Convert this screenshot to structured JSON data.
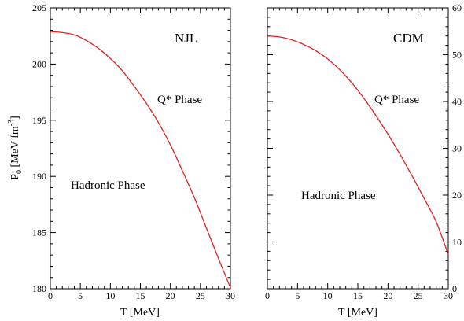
{
  "chart_data": [
    {
      "type": "line",
      "panel": "left",
      "model_label": "NJL",
      "annotations": [
        "Q* Phase",
        "Hadronic Phase"
      ],
      "xlabel": "T [MeV]",
      "ylabel_main": "P",
      "ylabel_sub": "0",
      "ylabel_rest": " [MeV fm",
      "ylabel_sup": "-3",
      "ylabel_close": "]",
      "xlim": [
        0,
        30
      ],
      "ylim": [
        180,
        205
      ],
      "x_ticks": [
        0,
        5,
        10,
        15,
        20,
        25,
        30
      ],
      "y_ticks": [
        180,
        185,
        190,
        195,
        200,
        205
      ],
      "x_minor_step": 1,
      "y_minor_step": 1,
      "y_axis_side": "left",
      "line_color": "#e02020",
      "series": [
        {
          "x": [
            0,
            2,
            4,
            6,
            8,
            10,
            12,
            14,
            16,
            18,
            20,
            22,
            24,
            26,
            28,
            30
          ],
          "y": [
            202.9,
            202.8,
            202.6,
            202.1,
            201.4,
            200.5,
            199.4,
            198.0,
            196.5,
            194.8,
            192.8,
            190.5,
            188.1,
            185.4,
            182.7,
            180.1
          ]
        }
      ]
    },
    {
      "type": "line",
      "panel": "right",
      "model_label": "CDM",
      "annotations": [
        "Q* Phase",
        "Hadronic Phase"
      ],
      "xlabel": "T [MeV]",
      "xlim": [
        0,
        30
      ],
      "ylim": [
        0,
        60
      ],
      "x_ticks": [
        0,
        5,
        10,
        15,
        20,
        25,
        30
      ],
      "y_ticks": [
        0,
        10,
        20,
        30,
        40,
        50,
        60
      ],
      "x_minor_step": 1,
      "y_minor_step": 2,
      "y_axis_side": "right",
      "line_color": "#e02020",
      "series": [
        {
          "x": [
            0,
            2,
            4,
            6,
            8,
            10,
            12,
            14,
            16,
            18,
            20,
            22,
            24,
            26,
            28,
            30
          ],
          "y": [
            54.0,
            53.8,
            53.2,
            52.2,
            50.9,
            49.1,
            46.8,
            44.0,
            40.7,
            37.0,
            33.0,
            28.7,
            24.1,
            19.3,
            14.3,
            7.3
          ]
        }
      ]
    }
  ]
}
